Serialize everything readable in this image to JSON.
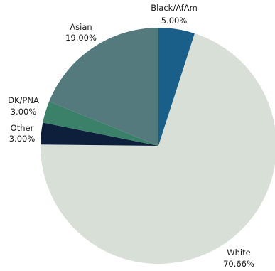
{
  "chart_data": {
    "type": "pie",
    "slices": [
      {
        "label": "Black/AfAm",
        "value": 5.0,
        "value_label": "5.00%",
        "color": "#1a5f8a"
      },
      {
        "label": "White",
        "value": 70.66,
        "value_label": "70.66%",
        "color": "#d7dfd7"
      },
      {
        "label": "Other",
        "value": 3.0,
        "value_label": "3.00%",
        "color": "#0e1f3c"
      },
      {
        "label": "DK/PNA",
        "value": 3.0,
        "value_label": "3.00%",
        "color": "#3b8068"
      },
      {
        "label": "Asian",
        "value": 19.0,
        "value_label": "19.00%",
        "color": "#547a7e"
      }
    ],
    "start_angle_deg": 0,
    "direction": "clockwise",
    "legend": "none"
  }
}
